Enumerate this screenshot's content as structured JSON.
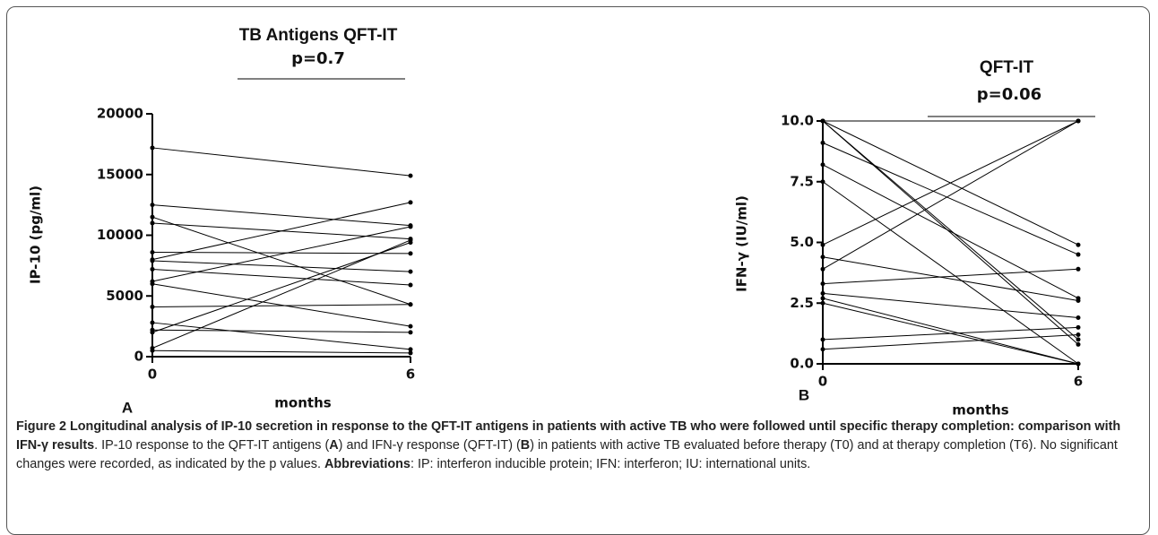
{
  "chart_data": [
    {
      "type": "line",
      "title": "TB Antigens QFT-IT",
      "subtitle": "p=0.7",
      "panel": "A",
      "x_label": "months",
      "y_label": "IP-10 (pg/ml)",
      "color": "#000000",
      "x": [
        0,
        6
      ],
      "xlim": [
        0,
        6
      ],
      "xticks": [
        0,
        6
      ],
      "ylim": [
        0,
        20000
      ],
      "yticks": [
        0,
        5000,
        10000,
        15000,
        20000
      ],
      "series": [
        {
          "values": [
            17200,
            14900
          ]
        },
        {
          "values": [
            12500,
            10800
          ]
        },
        {
          "values": [
            11500,
            4300
          ]
        },
        {
          "values": [
            11000,
            9700
          ]
        },
        {
          "values": [
            8600,
            8500
          ]
        },
        {
          "values": [
            8000,
            12700
          ]
        },
        {
          "values": [
            7900,
            7000
          ]
        },
        {
          "values": [
            7200,
            5900
          ]
        },
        {
          "values": [
            6200,
            10700
          ]
        },
        {
          "values": [
            6000,
            2500
          ]
        },
        {
          "values": [
            4100,
            4300
          ]
        },
        {
          "values": [
            2800,
            600
          ]
        },
        {
          "values": [
            2200,
            2000
          ]
        },
        {
          "values": [
            2000,
            9400
          ]
        },
        {
          "values": [
            700,
            9600
          ]
        },
        {
          "values": [
            500,
            300
          ]
        }
      ]
    },
    {
      "type": "line",
      "title": "QFT-IT",
      "subtitle": "p=0.06",
      "panel": "B",
      "x_label": "months",
      "y_label": "IFN-γ (IU/ml)",
      "color": "#000000",
      "x": [
        0,
        6
      ],
      "xlim": [
        0,
        6
      ],
      "xticks": [
        0,
        6
      ],
      "ylim": [
        0,
        10
      ],
      "yticks": [
        {
          "value": 0,
          "label": "0.0"
        },
        {
          "value": 2.5,
          "label": "2.5"
        },
        {
          "value": 5,
          "label": "5.0"
        },
        {
          "value": 7.5,
          "label": "7.5"
        },
        {
          "value": 10,
          "label": "10.0"
        }
      ],
      "series": [
        {
          "values": [
            10,
            10
          ]
        },
        {
          "values": [
            10,
            4.9
          ]
        },
        {
          "values": [
            10,
            1.0
          ]
        },
        {
          "values": [
            10,
            0.8
          ]
        },
        {
          "values": [
            9.1,
            4.5
          ]
        },
        {
          "values": [
            8.2,
            2.7
          ]
        },
        {
          "values": [
            7.5,
            0
          ]
        },
        {
          "values": [
            4.9,
            10
          ]
        },
        {
          "values": [
            3.9,
            10
          ]
        },
        {
          "values": [
            4.4,
            2.6
          ]
        },
        {
          "values": [
            3.3,
            3.9
          ]
        },
        {
          "values": [
            2.9,
            1.9
          ]
        },
        {
          "values": [
            2.7,
            0
          ]
        },
        {
          "values": [
            2.5,
            0
          ]
        },
        {
          "values": [
            1.0,
            1.5
          ]
        },
        {
          "values": [
            0.6,
            1.2
          ]
        }
      ]
    }
  ],
  "caption": {
    "segments": [
      {
        "text": "Figure 2 Longitudinal analysis of IP-10 secretion in response to the QFT-IT antigens in patients with active TB who were followed until specific therapy completion: comparison with IFN-γ results",
        "bold": true
      },
      {
        "text": ". IP-10 response to the QFT-IT antigens (",
        "bold": false
      },
      {
        "text": "A",
        "bold": true
      },
      {
        "text": ") and IFN-γ response (QFT-IT) (",
        "bold": false
      },
      {
        "text": "B",
        "bold": true
      },
      {
        "text": ") in patients with active TB evaluated before therapy (T0) and at therapy completion (T6). No significant changes were recorded, as indicated by the p values. ",
        "bold": false
      },
      {
        "text": "Abbreviations",
        "bold": true
      },
      {
        "text": ": IP: interferon inducible protein; IFN: interferon; IU: international units.",
        "bold": false
      }
    ]
  }
}
